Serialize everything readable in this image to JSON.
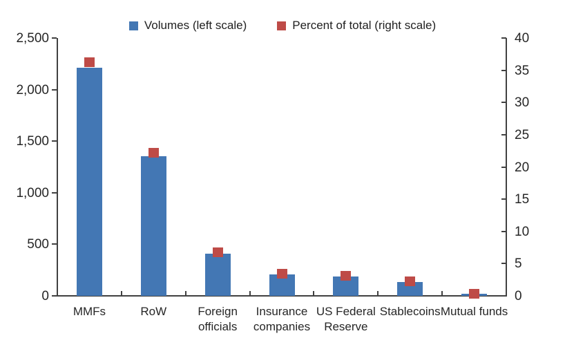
{
  "chart_data": {
    "type": "bar",
    "title": "",
    "categories": [
      "MMFs",
      "RoW",
      "Foreign officials",
      "Insurance companies",
      "US Federal Reserve",
      "Stablecoins",
      "Mutual funds"
    ],
    "series": [
      {
        "name": "Volumes (left scale)",
        "type": "bar",
        "axis": "left",
        "color": "#4377B4",
        "values": [
          2215,
          1355,
          410,
          210,
          190,
          132,
          18
        ]
      },
      {
        "name": "Percent of total (right scale)",
        "type": "point",
        "axis": "right",
        "color": "#BE4B47",
        "values": [
          36.2,
          22.2,
          6.8,
          3.4,
          3.1,
          2.2,
          0.3
        ]
      }
    ],
    "left_axis": {
      "min": 0,
      "max": 2500,
      "tick_labels": [
        "0",
        "500",
        "1,000",
        "1,500",
        "2,000",
        "2,500"
      ]
    },
    "right_axis": {
      "min": 0,
      "max": 40,
      "tick_labels": [
        "0",
        "5",
        "10",
        "15",
        "20",
        "25",
        "30",
        "35",
        "40"
      ]
    },
    "legend_position": "top-center",
    "grid": false,
    "axis_color": "#404040",
    "background": "#ffffff"
  }
}
